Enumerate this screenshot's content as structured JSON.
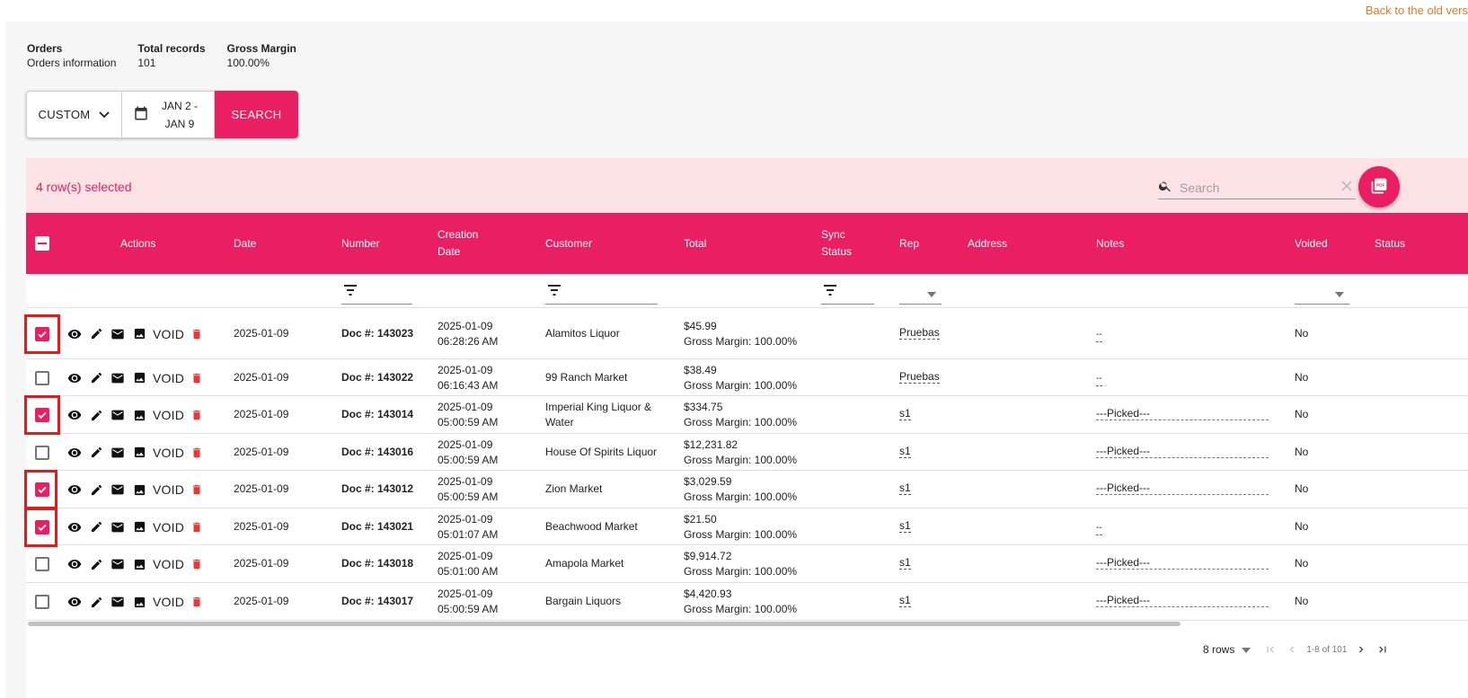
{
  "back_link": "Back to the old vers",
  "summary": {
    "orders_label": "Orders",
    "orders_value": "Orders information",
    "total_label": "Total records",
    "total_value": "101",
    "margin_label": "Gross Margin",
    "margin_value": "100.00%"
  },
  "filters": {
    "range_select": "CUSTOM",
    "date_line1": "JAN 2 -",
    "date_line2": "JAN 9",
    "search_button": "SEARCH"
  },
  "selection": {
    "count_text": "4 row(s) selected",
    "search_placeholder": "Search"
  },
  "columns": {
    "actions": "Actions",
    "date": "Date",
    "number": "Number",
    "creation_l1": "Creation",
    "creation_l2": "Date",
    "customer": "Customer",
    "total": "Total",
    "sync_l1": "Sync",
    "sync_l2": "Status",
    "rep": "Rep",
    "address": "Address",
    "notes": "Notes",
    "voided": "Voided",
    "status": "Status"
  },
  "void_label": "VOID",
  "colors": {
    "accent": "#e91e63",
    "highlight": "#e41b1b",
    "link": "#e87722"
  },
  "rows": [
    {
      "checked": true,
      "date": "2025-01-09",
      "number": "Doc #: 143023",
      "created_date": "2025-01-09",
      "created_time": "06:28:26 AM",
      "customer_l1": "Alamitos Liquor",
      "customer_l2": "",
      "total": "$45.99",
      "margin": "Gross Margin: 100.00%",
      "rep": "Pruebas",
      "notes": "--",
      "voided": "No"
    },
    {
      "checked": false,
      "date": "2025-01-09",
      "number": "Doc #: 143022",
      "created_date": "2025-01-09",
      "created_time": "06:16:43 AM",
      "customer_l1": "99 Ranch Market",
      "customer_l2": "",
      "total": "$38.49",
      "margin": "Gross Margin: 100.00%",
      "rep": "Pruebas",
      "notes": "--",
      "voided": "No"
    },
    {
      "checked": true,
      "date": "2025-01-09",
      "number": "Doc #: 143014",
      "created_date": "2025-01-09",
      "created_time": "05:00:59 AM",
      "customer_l1": "Imperial King Liquor &",
      "customer_l2": "Water",
      "total": "$334.75",
      "margin": "Gross Margin: 100.00%",
      "rep": "s1",
      "notes": "---Picked---",
      "voided": "No"
    },
    {
      "checked": false,
      "date": "2025-01-09",
      "number": "Doc #: 143016",
      "created_date": "2025-01-09",
      "created_time": "05:00:59 AM",
      "customer_l1": "House Of Spirits Liquor",
      "customer_l2": "",
      "total": "$12,231.82",
      "margin": "Gross Margin: 100.00%",
      "rep": "s1",
      "notes": "---Picked---",
      "voided": "No"
    },
    {
      "checked": true,
      "date": "2025-01-09",
      "number": "Doc #: 143012",
      "created_date": "2025-01-09",
      "created_time": "05:00:59 AM",
      "customer_l1": "Zion Market",
      "customer_l2": "",
      "total": "$3,029.59",
      "margin": "Gross Margin: 100.00%",
      "rep": "s1",
      "notes": "---Picked---",
      "voided": "No"
    },
    {
      "checked": true,
      "date": "2025-01-09",
      "number": "Doc #: 143021",
      "created_date": "2025-01-09",
      "created_time": "05:01:07 AM",
      "customer_l1": "Beachwood Market",
      "customer_l2": "",
      "total": "$21.50",
      "margin": "Gross Margin: 100.00%",
      "rep": "s1",
      "notes": "--",
      "voided": "No"
    },
    {
      "checked": false,
      "date": "2025-01-09",
      "number": "Doc #: 143018",
      "created_date": "2025-01-09",
      "created_time": "05:01:00 AM",
      "customer_l1": "Amapola Market",
      "customer_l2": "",
      "total": "$9,914.72",
      "margin": "Gross Margin: 100.00%",
      "rep": "s1",
      "notes": "---Picked---",
      "voided": "No"
    },
    {
      "checked": false,
      "date": "2025-01-09",
      "number": "Doc #: 143017",
      "created_date": "2025-01-09",
      "created_time": "05:00:59 AM",
      "customer_l1": "Bargain Liquors",
      "customer_l2": "",
      "total": "$4,420.93",
      "margin": "Gross Margin: 100.00%",
      "rep": "s1",
      "notes": "---Picked---",
      "voided": "No"
    }
  ],
  "pagination": {
    "rows_per_page": "8 rows",
    "range": "1-8 of 101"
  }
}
